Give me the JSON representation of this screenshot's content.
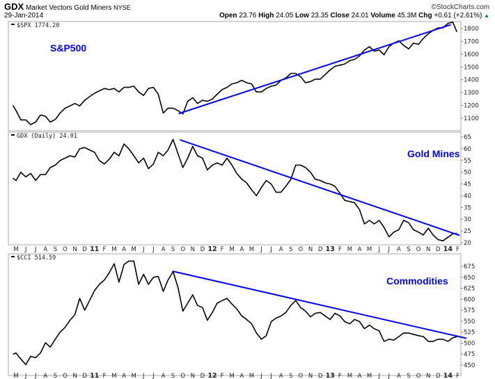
{
  "header": {
    "symbol": "GDX",
    "name": "Market Vectors Gold Miners",
    "exchange": "NYSE",
    "date": "29-Jan-2014",
    "copyright": "©StockCharts.com",
    "quote": {
      "open_label": "Open",
      "open": "23.76",
      "high_label": "High",
      "high": "24.05",
      "low_label": "Low",
      "low": "23.35",
      "close_label": "Close",
      "close": "24.01",
      "volume_label": "Volume",
      "volume": "45.3M",
      "chg_label": "Chg",
      "chg": "+0.61 (+2.61%)",
      "chg_arrow": "▲"
    }
  },
  "colors": {
    "price": "#000000",
    "trendline": "#0000ff",
    "annotation": "#0000ff",
    "up": "#008800",
    "frame": "#aaaaaa"
  },
  "chart_data": {
    "type": "line",
    "month_labels": [
      "M",
      "J",
      "J",
      "A",
      "S",
      "O",
      "N",
      "D",
      "11",
      "F",
      "M",
      "A",
      "M",
      "J",
      "J",
      "A",
      "S",
      "O",
      "N",
      "D",
      "12",
      "F",
      "M",
      "A",
      "M",
      "J",
      "J",
      "A",
      "S",
      "O",
      "N",
      "D",
      "13",
      "F",
      "M",
      "A",
      "M",
      "J",
      "J",
      "A",
      "S",
      "O",
      "N",
      "D",
      "14",
      "F"
    ],
    "dates": [
      "2010-04-22",
      "2010-05-01",
      "2010-05-16",
      "2010-06-01",
      "2010-06-16",
      "2010-07-01",
      "2010-07-16",
      "2010-08-01",
      "2010-08-16",
      "2010-09-01",
      "2010-09-16",
      "2010-10-01",
      "2010-10-16",
      "2010-11-01",
      "2010-11-16",
      "2010-12-01",
      "2010-12-16",
      "2011-01-01",
      "2011-01-16",
      "2011-02-01",
      "2011-02-16",
      "2011-03-01",
      "2011-03-16",
      "2011-04-01",
      "2011-04-16",
      "2011-05-01",
      "2011-05-16",
      "2011-06-01",
      "2011-06-16",
      "2011-07-01",
      "2011-07-16",
      "2011-08-01",
      "2011-08-16",
      "2011-09-01",
      "2011-09-16",
      "2011-10-01",
      "2011-10-16",
      "2011-11-01",
      "2011-11-16",
      "2011-12-01",
      "2011-12-16",
      "2012-01-01",
      "2012-01-16",
      "2012-02-01",
      "2012-02-16",
      "2012-03-01",
      "2012-03-16",
      "2012-04-01",
      "2012-04-16",
      "2012-05-01",
      "2012-05-16",
      "2012-06-01",
      "2012-06-16",
      "2012-07-01",
      "2012-07-16",
      "2012-08-01",
      "2012-08-16",
      "2012-09-01",
      "2012-09-16",
      "2012-10-01",
      "2012-10-16",
      "2012-11-01",
      "2012-11-16",
      "2012-12-01",
      "2012-12-16",
      "2013-01-01",
      "2013-01-16",
      "2013-02-01",
      "2013-02-16",
      "2013-03-01",
      "2013-03-16",
      "2013-04-01",
      "2013-04-16",
      "2013-05-01",
      "2013-05-16",
      "2013-06-01",
      "2013-06-16",
      "2013-07-01",
      "2013-07-16",
      "2013-08-01",
      "2013-08-16",
      "2013-09-01",
      "2013-09-16",
      "2013-10-01",
      "2013-10-16",
      "2013-11-01",
      "2013-11-16",
      "2013-12-01",
      "2013-12-16",
      "2014-01-01",
      "2014-01-16",
      "2014-01-29"
    ],
    "panels": [
      {
        "legend": "$SPX 1774.20",
        "annotation": "S&P500",
        "ylim": [
          1050,
          1870
        ],
        "yticks": [
          1100,
          1200,
          1300,
          1400,
          1500,
          1600,
          1700,
          1800
        ],
        "values": [
          1200,
          1160,
          1087,
          1087,
          1050,
          1070,
          1125,
          1115,
          1070,
          1090,
          1140,
          1178,
          1196,
          1215,
          1196,
          1240,
          1268,
          1295,
          1314,
          1332,
          1323,
          1332,
          1305,
          1341,
          1341,
          1350,
          1305,
          1278,
          1332,
          1341,
          1287,
          1140,
          1178,
          1178,
          1160,
          1133,
          1232,
          1260,
          1215,
          1240,
          1232,
          1250,
          1287,
          1323,
          1341,
          1368,
          1377,
          1396,
          1377,
          1368,
          1305,
          1305,
          1332,
          1350,
          1359,
          1396,
          1414,
          1450,
          1450,
          1423,
          1377,
          1386,
          1405,
          1405,
          1441,
          1477,
          1505,
          1514,
          1523,
          1550,
          1559,
          1586,
          1632,
          1659,
          1623,
          1632,
          1595,
          1659,
          1686,
          1704,
          1668,
          1641,
          1686,
          1677,
          1722,
          1759,
          1786,
          1805,
          1805,
          1840,
          1850,
          1774.2
        ],
        "trendline": [
          {
            "date": "2011-09-18",
            "value": 1136
          },
          {
            "date": "2014-01-10",
            "value": 1830
          }
        ]
      },
      {
        "legend": "GDX (Daily) 24.01",
        "annotation": "Gold Mines",
        "ylim": [
          18.5,
          66
        ],
        "yticks": [
          20,
          25,
          30,
          35,
          40,
          45,
          50,
          55,
          60,
          65
        ],
        "values": [
          47.5,
          46.5,
          50,
          48,
          49.5,
          46.5,
          49,
          49,
          52,
          53,
          55,
          56,
          57,
          56.5,
          60,
          60.5,
          59.5,
          58.5,
          55,
          53.5,
          55.5,
          58.5,
          57,
          62,
          60,
          57,
          54,
          56,
          51.5,
          53.5,
          58.5,
          57,
          59.5,
          64,
          58,
          52,
          56,
          61,
          57,
          56,
          51,
          53,
          54,
          53,
          56,
          53,
          49.5,
          47,
          45.5,
          42.5,
          40,
          43.5,
          46.5,
          45,
          41.5,
          41.5,
          44,
          47,
          53,
          53,
          52,
          50,
          47,
          46.5,
          45.5,
          45,
          44,
          41,
          38,
          37.5,
          37,
          34,
          28,
          29.5,
          28,
          29.5,
          26.5,
          22.5,
          24.5,
          25.5,
          29.5,
          28.5,
          25.5,
          24.5,
          23.3,
          26.2,
          23.3,
          21.3,
          20.8,
          22.3,
          23.8,
          24.01
        ],
        "trendline": [
          {
            "date": "2011-09-22",
            "value": 63.8
          },
          {
            "date": "2014-02-07",
            "value": 23.1
          }
        ]
      },
      {
        "legend": "$CCI 514.59",
        "annotation": "Commodities",
        "ylim": [
          440,
          695
        ],
        "yticks": [
          450,
          475,
          500,
          525,
          550,
          575,
          600,
          625,
          650,
          675
        ],
        "values": [
          475,
          477.5,
          464,
          451,
          470,
          467,
          477.5,
          501,
          491,
          509,
          525,
          536,
          552,
          565,
          602,
          575,
          597,
          620,
          634,
          644,
          660,
          681,
          639,
          679,
          687,
          687,
          634,
          657,
          634,
          650,
          652,
          618,
          644,
          663,
          628,
          573,
          591,
          610,
          586,
          581,
          552,
          570,
          591,
          597,
          602,
          589,
          578,
          562,
          554,
          544,
          523,
          509,
          517,
          549,
          557,
          562,
          570,
          586,
          597,
          581,
          573,
          560,
          568,
          570,
          562,
          554,
          568,
          562,
          549,
          544,
          554,
          549,
          533,
          541,
          533,
          528,
          504,
          509,
          507,
          515,
          523,
          523,
          520,
          517,
          515,
          504,
          504,
          509,
          509,
          504,
          512,
          514.59
        ],
        "trendline": [
          {
            "date": "2011-08-29",
            "value": 664
          },
          {
            "date": "2014-02-28",
            "value": 511
          }
        ]
      }
    ]
  }
}
